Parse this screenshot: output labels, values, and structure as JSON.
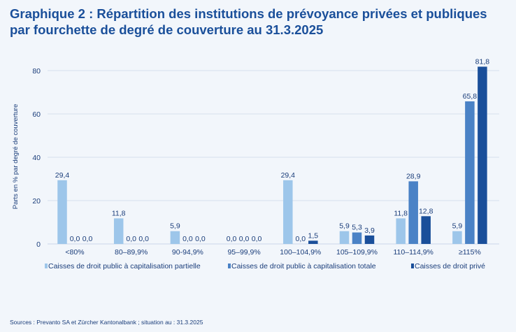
{
  "title": {
    "line1": "Graphique 2 : Répartition des institutions de prévoyance privées et publiques",
    "line2": "par fourchette de degré de couverture au 31.3.2025"
  },
  "source": "Sources : Prevanto SA et Zürcher Kantonalbank ; situation au : 31.3.2025",
  "colors": {
    "background": "#f2f6fb",
    "gridline": "#d5e0ee",
    "text": "#1a3d7a",
    "title": "#1a4f9a"
  },
  "chart_data": {
    "type": "bar",
    "ylabel": "Parts en % par degré de couverture",
    "xlabel": "",
    "ylim": [
      0,
      85
    ],
    "yticks": [
      0,
      20,
      40,
      60,
      80
    ],
    "grid": true,
    "legend_position": "bottom",
    "categories": [
      "<80%",
      "80–89,9%",
      "90-94,9%",
      "95–99,9%",
      "100–104,9%",
      "105–109,9%",
      "110–114,9%",
      "≥115%"
    ],
    "series": [
      {
        "name": "Caisses de droit public à capitalisation partielle",
        "color": "#9dc6ea",
        "values": [
          29.4,
          11.8,
          5.9,
          0.0,
          29.4,
          5.9,
          11.8,
          5.9
        ],
        "labels": [
          "29,4",
          "11,8",
          "5,9",
          "0,0",
          "29,4",
          "5,9",
          "11,8",
          "5,9"
        ]
      },
      {
        "name": "Caisses de droit public à capitalisation totale",
        "color": "#4a82c6",
        "values": [
          0.0,
          0.0,
          0.0,
          0.0,
          0.0,
          5.3,
          28.9,
          65.8
        ],
        "labels": [
          "0,0",
          "0,0",
          "0,0",
          "0,0",
          "0,0",
          "5,3",
          "28,9",
          "65,8"
        ]
      },
      {
        "name": "Caisses de droit privé",
        "color": "#1a4f9a",
        "values": [
          0.0,
          0.0,
          0.0,
          0.0,
          1.5,
          3.9,
          12.8,
          81.8
        ],
        "labels": [
          "0,0",
          "0,0",
          "0,0",
          "0,0",
          "1,5",
          "3,9",
          "12,8",
          "81,8"
        ]
      }
    ]
  }
}
